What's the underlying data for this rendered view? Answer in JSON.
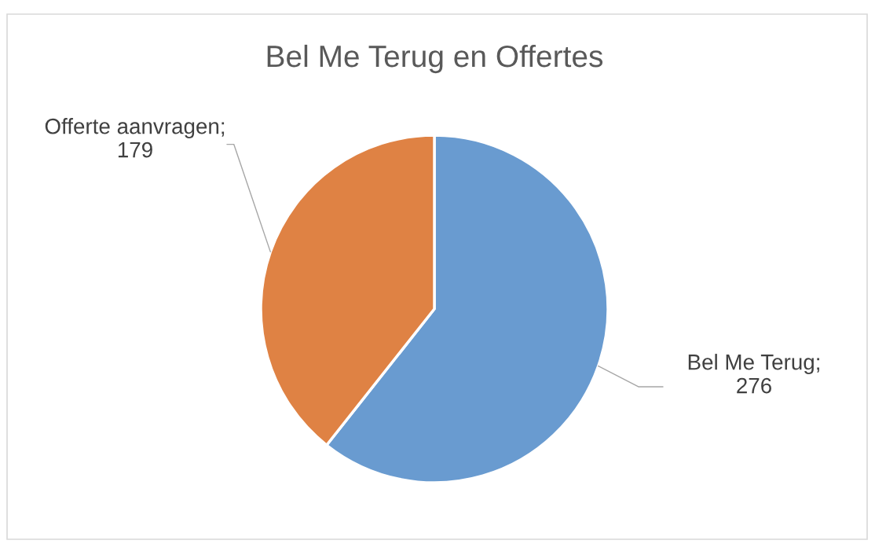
{
  "chart_data": {
    "type": "pie",
    "title": "Bel Me Terug en Offertes",
    "values": [
      276,
      179
    ],
    "colors": [
      "#699bd0",
      "#df8244"
    ],
    "value_labels": [
      "Bel Me Terug;\n276",
      "Offerte aanvragen;\n179"
    ]
  }
}
